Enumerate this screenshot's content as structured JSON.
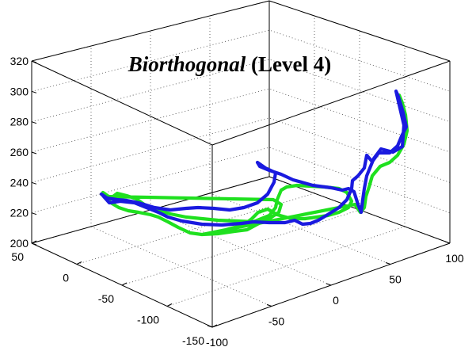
{
  "chart_data": {
    "type": "line3d",
    "title_italic": "Biorthogonal",
    "title_normal": " (Level 4)",
    "xlabel": "",
    "ylabel": "",
    "zlabel": "",
    "grid": true,
    "box": true,
    "zlim": [
      200,
      320
    ],
    "z_ticks": [
      "200",
      "220",
      "240",
      "260",
      "280",
      "300",
      "320"
    ],
    "y_ticks": [
      "-150",
      "-100",
      "-50",
      "0",
      "50"
    ],
    "x_ticks": [
      "-100",
      "-50",
      "0",
      "50",
      "100"
    ],
    "series": [
      {
        "color": "#1a1adf",
        "points": [
          [
            130,
            247
          ],
          [
            138,
            256
          ],
          [
            152,
            254
          ],
          [
            170,
            256
          ],
          [
            185,
            262
          ],
          [
            200,
            268
          ],
          [
            212,
            274
          ],
          [
            230,
            279
          ],
          [
            255,
            283
          ],
          [
            280,
            284
          ],
          [
            305,
            282
          ],
          [
            320,
            280
          ],
          [
            340,
            281
          ],
          [
            360,
            281
          ],
          [
            372,
            278
          ],
          [
            382,
            283
          ],
          [
            392,
            282
          ],
          [
            402,
            278
          ],
          [
            412,
            272
          ],
          [
            428,
            262
          ],
          [
            438,
            252
          ],
          [
            444,
            238
          ],
          [
            445,
            228
          ],
          [
            452,
            222
          ],
          [
            460,
            212
          ],
          [
            463,
            196
          ],
          [
            470,
            204
          ],
          [
            478,
            193
          ],
          [
            492,
            193
          ],
          [
            502,
            184
          ],
          [
            507,
            172
          ],
          [
            513,
            160
          ],
          [
            509,
            142
          ],
          [
            503,
            122
          ],
          [
            500,
            115
          ],
          [
            510,
            158
          ],
          [
            508,
            185
          ],
          [
            496,
            192
          ],
          [
            481,
            188
          ],
          [
            472,
            200
          ],
          [
            463,
            222
          ],
          [
            460,
            238
          ],
          [
            458,
            252
          ],
          [
            456,
            268
          ],
          [
            452,
            258
          ],
          [
            447,
            242
          ],
          [
            440,
            238
          ],
          [
            432,
            240
          ],
          [
            418,
            237
          ],
          [
            395,
            234
          ],
          [
            370,
            227
          ],
          [
            355,
            220
          ],
          [
            340,
            215
          ],
          [
            328,
            210
          ],
          [
            325,
            205
          ],
          [
            335,
            212
          ],
          [
            348,
            218
          ],
          [
            346,
            230
          ],
          [
            338,
            245
          ],
          [
            325,
            256
          ],
          [
            308,
            262
          ],
          [
            290,
            265
          ],
          [
            270,
            263
          ],
          [
            250,
            262
          ],
          [
            235,
            263
          ],
          [
            215,
            265
          ],
          [
            195,
            262
          ],
          [
            175,
            256
          ],
          [
            160,
            253
          ],
          [
            148,
            252
          ],
          [
            135,
            250
          ],
          [
            128,
            245
          ]
        ]
      },
      {
        "color": "#1fe01f",
        "points": [
          [
            130,
            243
          ],
          [
            140,
            250
          ],
          [
            148,
            244
          ],
          [
            160,
            247
          ],
          [
            172,
            251
          ],
          [
            182,
            258
          ],
          [
            195,
            264
          ],
          [
            215,
            270
          ],
          [
            235,
            274
          ],
          [
            255,
            276
          ],
          [
            275,
            278
          ],
          [
            300,
            279
          ],
          [
            320,
            280
          ],
          [
            340,
            272
          ],
          [
            348,
            262
          ],
          [
            350,
            252
          ],
          [
            355,
            240
          ],
          [
            362,
            236
          ],
          [
            375,
            234
          ],
          [
            392,
            235
          ],
          [
            410,
            236
          ],
          [
            428,
            238
          ],
          [
            438,
            243
          ],
          [
            444,
            254
          ],
          [
            440,
            262
          ],
          [
            428,
            268
          ],
          [
            414,
            272
          ],
          [
            400,
            274
          ],
          [
            385,
            276
          ],
          [
            368,
            276
          ],
          [
            350,
            271
          ],
          [
            338,
            264
          ],
          [
            326,
            268
          ],
          [
            318,
            276
          ],
          [
            310,
            282
          ],
          [
            300,
            286
          ],
          [
            285,
            290
          ],
          [
            270,
            293
          ],
          [
            255,
            296
          ],
          [
            240,
            294
          ],
          [
            225,
            287
          ],
          [
            212,
            280
          ],
          [
            200,
            274
          ],
          [
            190,
            271
          ],
          [
            175,
            268
          ],
          [
            162,
            266
          ],
          [
            150,
            262
          ],
          [
            140,
            256
          ],
          [
            132,
            248
          ],
          [
            345,
            252
          ],
          [
            355,
            258
          ],
          [
            352,
            268
          ],
          [
            340,
            276
          ],
          [
            325,
            283
          ],
          [
            312,
            290
          ],
          [
            296,
            292
          ],
          [
            275,
            295
          ],
          [
            255,
            296
          ],
          [
            448,
            258
          ],
          [
            455,
            268
          ],
          [
            460,
            262
          ],
          [
            462,
            248
          ],
          [
            466,
            236
          ],
          [
            470,
            222
          ],
          [
            480,
            210
          ],
          [
            492,
            205
          ],
          [
            502,
            196
          ],
          [
            510,
            182
          ],
          [
            514,
            165
          ],
          [
            512,
            145
          ],
          [
            508,
            130
          ],
          [
            504,
            120
          ]
        ]
      }
    ]
  }
}
